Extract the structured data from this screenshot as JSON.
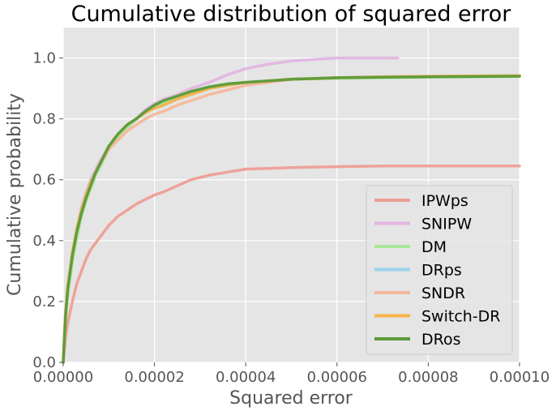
{
  "chart_data": {
    "type": "line",
    "title": "Cumulative distribution of squared error",
    "xlabel": "Squared error",
    "ylabel": "Cumulative probability",
    "xlim": [
      0,
      0.0001
    ],
    "ylim": [
      0,
      1.1
    ],
    "grid": true,
    "x_ticks": [
      0,
      2e-05,
      4e-05,
      6e-05,
      8e-05,
      0.0001
    ],
    "x_tick_labels": [
      "0.00000",
      "0.00002",
      "0.00004",
      "0.00006",
      "0.00008",
      "0.00010"
    ],
    "y_ticks": [
      0,
      0.2,
      0.4,
      0.6,
      0.8,
      1.0
    ],
    "y_tick_labels": [
      "0.0",
      "0.2",
      "0.4",
      "0.6",
      "0.8",
      "1.0"
    ],
    "legend_position": "lower-right",
    "series": [
      {
        "name": "IPWps",
        "color": "#ee9e95",
        "x": [
          0,
          5e-07,
          1e-06,
          2e-06,
          3e-06,
          4e-06,
          5e-06,
          6e-06,
          7e-06,
          8e-06,
          1e-05,
          1.2e-05,
          1.4e-05,
          1.6e-05,
          1.8e-05,
          2e-05,
          2.2e-05,
          2.5e-05,
          2.8e-05,
          3.2e-05,
          3.6e-05,
          4e-05,
          4.5e-05,
          5e-05,
          6e-05,
          7e-05,
          8e-05,
          0.0001
        ],
        "values": [
          0,
          0.08,
          0.13,
          0.2,
          0.26,
          0.3,
          0.34,
          0.37,
          0.39,
          0.41,
          0.45,
          0.48,
          0.5,
          0.52,
          0.535,
          0.55,
          0.56,
          0.58,
          0.6,
          0.615,
          0.625,
          0.635,
          0.637,
          0.64,
          0.643,
          0.645,
          0.645,
          0.645
        ]
      },
      {
        "name": "SNIPW",
        "color": "#e2b5e0",
        "x": [
          0,
          5e-07,
          1e-06,
          2e-06,
          3e-06,
          4e-06,
          5e-06,
          6e-06,
          7e-06,
          8e-06,
          1e-05,
          1.2e-05,
          1.4e-05,
          1.6e-05,
          1.8e-05,
          2e-05,
          2.2e-05,
          2.5e-05,
          2.8e-05,
          3.2e-05,
          3.6e-05,
          4e-05,
          4.5e-05,
          5e-05,
          5.5e-05,
          6e-05,
          6.5e-05,
          7e-05,
          7.33e-05
        ],
        "values": [
          0,
          0.15,
          0.24,
          0.36,
          0.44,
          0.51,
          0.56,
          0.6,
          0.63,
          0.66,
          0.71,
          0.75,
          0.78,
          0.8,
          0.83,
          0.85,
          0.865,
          0.88,
          0.9,
          0.92,
          0.945,
          0.965,
          0.98,
          0.99,
          0.995,
          1.0,
          1.0,
          1.0,
          1.0
        ]
      },
      {
        "name": "DM",
        "color": "#a8e89a",
        "x": [
          0,
          5e-07,
          1e-06,
          2e-06,
          3e-06,
          4e-06,
          5e-06,
          6e-06,
          7e-06,
          8e-06,
          1e-05,
          1.2e-05,
          1.4e-05,
          1.6e-05,
          1.8e-05,
          2e-05,
          2.2e-05,
          2.5e-05,
          2.8e-05,
          3.2e-05,
          3.6e-05,
          4e-05,
          4.5e-05,
          5e-05,
          6e-05,
          7e-05,
          8e-05,
          0.0001
        ],
        "values": [
          0,
          0.14,
          0.22,
          0.33,
          0.41,
          0.48,
          0.53,
          0.57,
          0.61,
          0.64,
          0.7,
          0.74,
          0.77,
          0.8,
          0.82,
          0.84,
          0.855,
          0.875,
          0.89,
          0.905,
          0.915,
          0.92,
          0.925,
          0.93,
          0.933,
          0.935,
          0.937,
          0.94
        ]
      },
      {
        "name": "DRps",
        "color": "#9cd3ee",
        "x": [
          0,
          5e-07,
          1e-06,
          2e-06,
          3e-06,
          4e-06,
          5e-06,
          6e-06,
          7e-06,
          8e-06,
          1e-05,
          1.2e-05,
          1.4e-05,
          1.6e-05,
          1.8e-05,
          2e-05,
          2.2e-05,
          2.5e-05,
          2.8e-05,
          3.2e-05,
          3.6e-05,
          4e-05,
          4.5e-05,
          5e-05,
          6e-05,
          7e-05,
          8e-05,
          0.0001
        ],
        "values": [
          0,
          0.16,
          0.25,
          0.36,
          0.44,
          0.5,
          0.55,
          0.59,
          0.62,
          0.65,
          0.71,
          0.75,
          0.78,
          0.8,
          0.82,
          0.835,
          0.845,
          0.865,
          0.88,
          0.9,
          0.91,
          0.92,
          0.925,
          0.93,
          0.935,
          0.938,
          0.94,
          0.942
        ]
      },
      {
        "name": "SNDR",
        "color": "#f5b79b",
        "x": [
          0,
          5e-07,
          1e-06,
          2e-06,
          3e-06,
          4e-06,
          5e-06,
          6e-06,
          7e-06,
          8e-06,
          1e-05,
          1.2e-05,
          1.4e-05,
          1.6e-05,
          1.8e-05,
          2e-05,
          2.2e-05,
          2.5e-05,
          2.8e-05,
          3.2e-05,
          3.6e-05,
          4e-05,
          4.5e-05,
          5e-05,
          6e-05,
          7e-05,
          8e-05,
          0.0001
        ],
        "values": [
          0,
          0.16,
          0.25,
          0.36,
          0.44,
          0.5,
          0.55,
          0.59,
          0.62,
          0.65,
          0.7,
          0.73,
          0.76,
          0.78,
          0.8,
          0.815,
          0.825,
          0.845,
          0.86,
          0.88,
          0.895,
          0.91,
          0.92,
          0.93,
          0.935,
          0.938,
          0.94,
          0.942
        ]
      },
      {
        "name": "Switch-DR",
        "color": "#f7b24a",
        "x": [
          0,
          5e-07,
          1e-06,
          2e-06,
          3e-06,
          4e-06,
          5e-06,
          6e-06,
          7e-06,
          8e-06,
          1e-05,
          1.2e-05,
          1.4e-05,
          1.6e-05,
          1.8e-05,
          2e-05,
          2.2e-05,
          2.5e-05,
          2.8e-05,
          3.2e-05,
          3.6e-05,
          4e-05,
          4.5e-05,
          5e-05,
          6e-05,
          7e-05,
          8e-05,
          0.0001
        ],
        "values": [
          0,
          0.16,
          0.25,
          0.36,
          0.44,
          0.5,
          0.55,
          0.59,
          0.62,
          0.65,
          0.71,
          0.75,
          0.78,
          0.8,
          0.82,
          0.835,
          0.845,
          0.865,
          0.88,
          0.9,
          0.91,
          0.92,
          0.925,
          0.93,
          0.935,
          0.938,
          0.94,
          0.942
        ]
      },
      {
        "name": "DRos",
        "color": "#5a9b3a",
        "x": [
          0,
          5e-07,
          1e-06,
          2e-06,
          3e-06,
          4e-06,
          5e-06,
          6e-06,
          7e-06,
          8e-06,
          1e-05,
          1.2e-05,
          1.4e-05,
          1.6e-05,
          1.8e-05,
          2e-05,
          2.2e-05,
          2.5e-05,
          2.8e-05,
          3.2e-05,
          3.6e-05,
          4e-05,
          4.5e-05,
          5e-05,
          6e-05,
          7e-05,
          8e-05,
          0.0001
        ],
        "values": [
          0,
          0.15,
          0.24,
          0.35,
          0.43,
          0.49,
          0.54,
          0.58,
          0.62,
          0.65,
          0.71,
          0.75,
          0.78,
          0.8,
          0.825,
          0.845,
          0.86,
          0.875,
          0.89,
          0.905,
          0.915,
          0.92,
          0.925,
          0.93,
          0.935,
          0.937,
          0.938,
          0.94
        ]
      }
    ]
  }
}
